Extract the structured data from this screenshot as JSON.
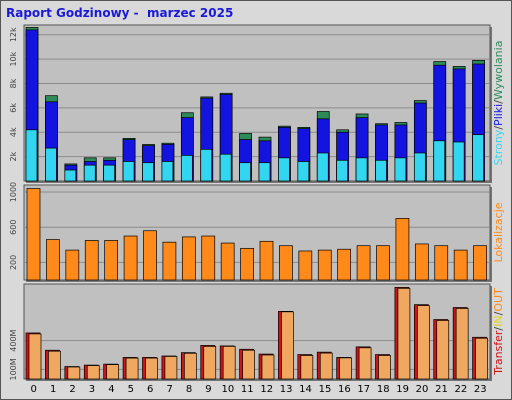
{
  "title": "Raport Godzinowy -  marzec 2025",
  "colors": {
    "panel_bg": "#c0c0c0",
    "strony": "#2e8b57",
    "pliki": "#1414e0",
    "wywolania": "#33d6f0",
    "lokalizacje": "#ff8a1a",
    "transfer_total": "#d01414",
    "transfer_in": "#f0a860",
    "grid": "#8c8c8c"
  },
  "chart_data": [
    {
      "type": "bar",
      "name": "hits-pages-files",
      "categories": [
        "0",
        "1",
        "2",
        "3",
        "4",
        "5",
        "6",
        "7",
        "8",
        "9",
        "10",
        "11",
        "12",
        "13",
        "14",
        "15",
        "16",
        "17",
        "18",
        "19",
        "20",
        "21",
        "22",
        "23"
      ],
      "series": [
        {
          "name": "Strony",
          "values": [
            12600,
            7000,
            1400,
            1900,
            1900,
            3500,
            3000,
            3100,
            5600,
            6900,
            7200,
            3900,
            3600,
            4500,
            4400,
            5700,
            4200,
            5500,
            4700,
            4800,
            6600,
            9800,
            9400,
            9900
          ]
        },
        {
          "name": "Pliki",
          "values": [
            12400,
            6500,
            1300,
            1600,
            1700,
            3400,
            2900,
            3000,
            5200,
            6800,
            7100,
            3400,
            3300,
            4400,
            4300,
            5100,
            4000,
            5200,
            4600,
            4600,
            6400,
            9500,
            9200,
            9600
          ]
        },
        {
          "name": "Wywolania",
          "values": [
            4200,
            2700,
            900,
            1300,
            1300,
            1600,
            1500,
            1600,
            2100,
            2600,
            2200,
            1500,
            1500,
            1900,
            1600,
            2300,
            1700,
            1900,
            1700,
            1900,
            2300,
            3300,
            3200,
            3800
          ]
        }
      ],
      "y_ticks": [
        "2k",
        "4k",
        "6k",
        "8k",
        "10k",
        "12k"
      ],
      "y_tick_values": [
        2000,
        4000,
        6000,
        8000,
        10000,
        12000
      ],
      "ylim": [
        0,
        12800
      ],
      "side_label": [
        "Strony",
        "/",
        "Pliki",
        "/",
        "Wywolania"
      ]
    },
    {
      "type": "bar",
      "name": "lokalizacje",
      "series": [
        {
          "name": "Lokalizacje",
          "values": [
            1040,
            460,
            340,
            450,
            450,
            500,
            560,
            430,
            490,
            500,
            420,
            360,
            440,
            390,
            330,
            340,
            350,
            390,
            390,
            700,
            410,
            390,
            340,
            390
          ]
        }
      ],
      "y_ticks": [
        "200",
        "600",
        "1000"
      ],
      "y_tick_values": [
        200,
        600,
        1000
      ],
      "ylim": [
        0,
        1080
      ],
      "side_label": [
        "Lokalizacje"
      ]
    },
    {
      "type": "bar",
      "name": "transfer",
      "series": [
        {
          "name": "Transfer",
          "values": [
            480,
            300,
            130,
            145,
            155,
            225,
            225,
            240,
            275,
            350,
            345,
            310,
            260,
            705,
            255,
            280,
            225,
            335,
            255,
            955,
            775,
            620,
            745,
            435
          ]
        },
        {
          "name": "IN",
          "values": [
            470,
            290,
            125,
            140,
            150,
            218,
            218,
            235,
            268,
            340,
            340,
            300,
            250,
            700,
            245,
            270,
            220,
            325,
            245,
            945,
            765,
            610,
            735,
            425
          ]
        }
      ],
      "y_ticks": [
        "100M",
        "400M"
      ],
      "y_tick_values": [
        100,
        400
      ],
      "ylim": [
        0,
        990
      ],
      "side_label": [
        "Transfer",
        "/",
        "IN",
        "/",
        "OUT"
      ]
    }
  ]
}
